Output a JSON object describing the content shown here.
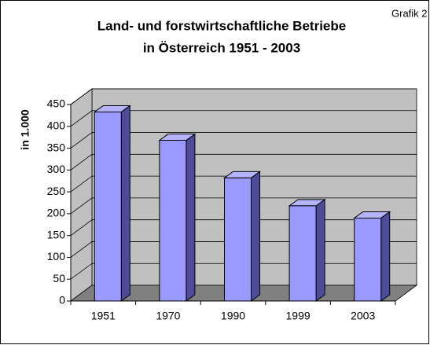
{
  "chart_data": {
    "type": "bar3d",
    "title_lines": [
      "Land- und forstwirtschaftliche Betriebe",
      "in Österreich 1951 - 2003"
    ],
    "annotation": "Grafik 2",
    "y_label": "in 1.000",
    "categories": [
      "1951",
      "1970",
      "1990",
      "1999",
      "2003"
    ],
    "values": [
      433,
      368,
      282,
      218,
      190
    ],
    "color": "#9999ff",
    "ylim": [
      0,
      450
    ],
    "yticks": [
      0,
      50,
      100,
      150,
      200,
      250,
      300,
      350,
      400,
      450
    ],
    "grid": true
  }
}
